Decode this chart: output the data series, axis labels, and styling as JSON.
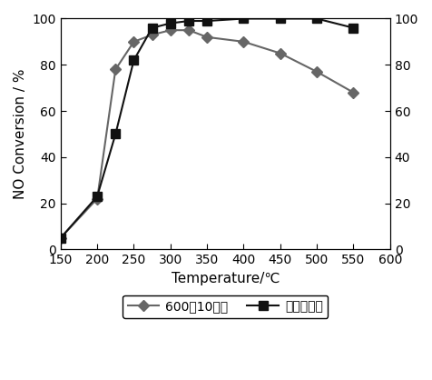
{
  "series1_label": "600度10小时",
  "series2_label": "新鲜弪化剂",
  "series1_x": [
    150,
    200,
    225,
    250,
    275,
    300,
    325,
    350,
    400,
    450,
    500,
    550
  ],
  "series1_y": [
    5,
    22,
    78,
    90,
    93,
    95,
    95,
    92,
    90,
    85,
    77,
    68
  ],
  "series2_x": [
    150,
    200,
    225,
    250,
    275,
    300,
    325,
    350,
    400,
    450,
    500,
    550
  ],
  "series2_y": [
    5,
    23,
    50,
    82,
    96,
    98,
    99,
    99,
    100,
    100,
    100,
    96
  ],
  "xlabel": "Temperature/℃",
  "ylabel": "NO Conversion / %",
  "xlim": [
    150,
    600
  ],
  "ylim": [
    0,
    100
  ],
  "xticks": [
    150,
    200,
    250,
    300,
    350,
    400,
    450,
    500,
    550,
    600
  ],
  "yticks": [
    0,
    20,
    40,
    60,
    80,
    100
  ],
  "line1_color": "#666666",
  "line2_color": "#111111",
  "marker1": "D",
  "marker2": "s",
  "markersize1": 6,
  "markersize2": 7,
  "linewidth": 1.5,
  "background_color": "#ffffff"
}
